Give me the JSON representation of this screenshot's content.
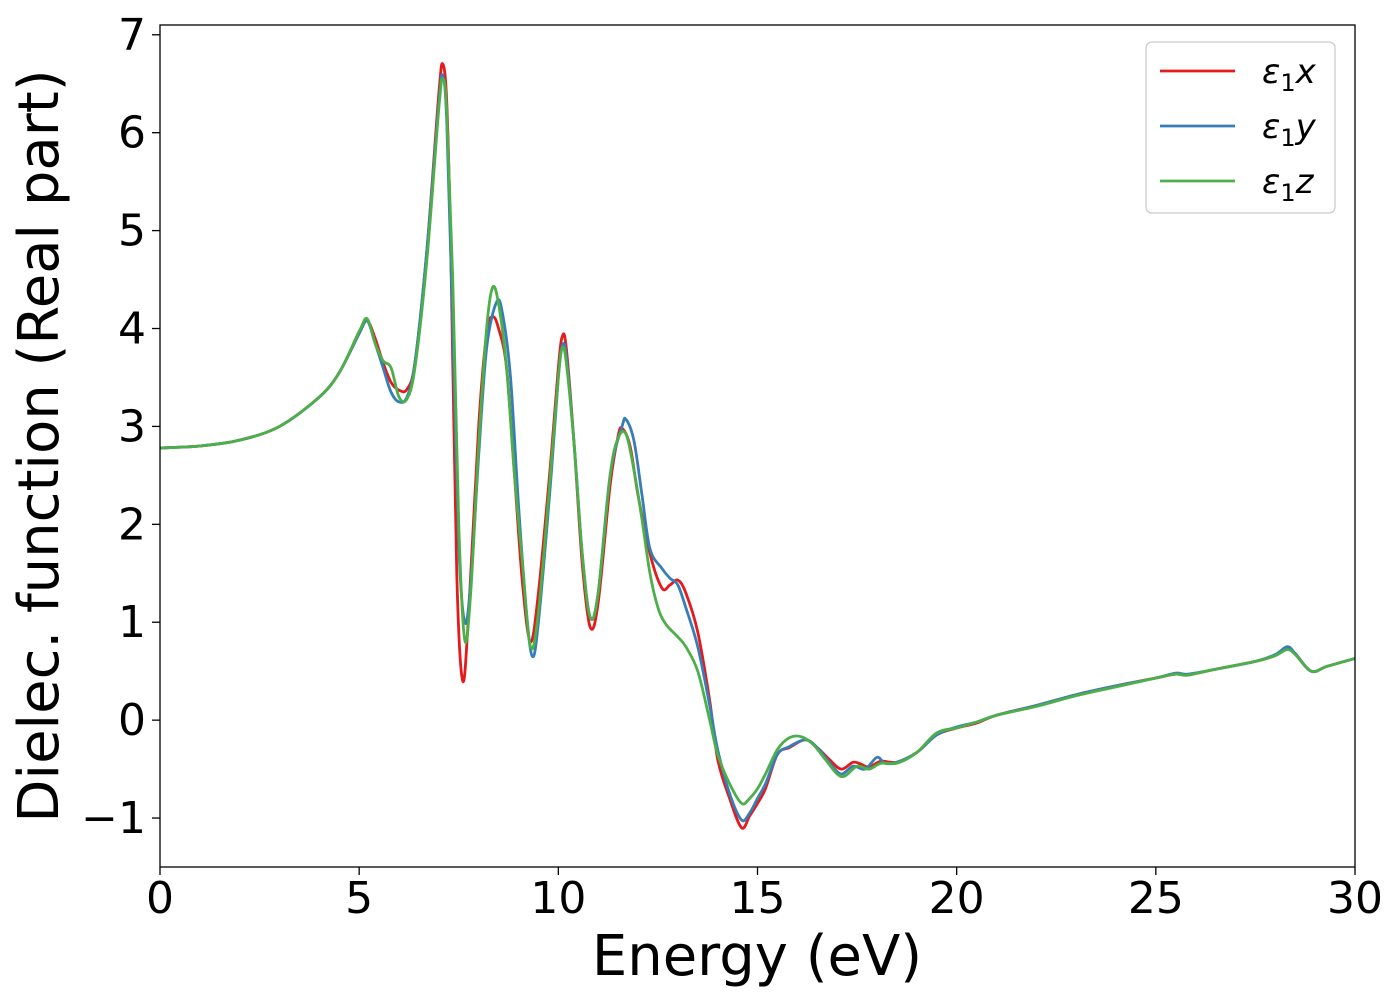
{
  "chart_data": {
    "type": "line",
    "title": "",
    "xlabel": "Energy (eV)",
    "ylabel": "Dielec. function (Real part)",
    "xlim": [
      0,
      30
    ],
    "ylim": [
      -1.5,
      7.1
    ],
    "xticks": [
      0,
      5,
      10,
      15,
      20,
      25,
      30
    ],
    "xtick_labels": [
      "0",
      "5",
      "10",
      "15",
      "20",
      "25",
      "30"
    ],
    "yticks": [
      -1,
      0,
      1,
      2,
      3,
      4,
      5,
      6,
      7
    ],
    "ytick_labels": [
      "−1",
      "0",
      "1",
      "2",
      "3",
      "4",
      "5",
      "6",
      "7"
    ],
    "grid": false,
    "legend_position": "top-right",
    "series": [
      {
        "name": "ε1x",
        "legend_main": "ε",
        "legend_sub": "1",
        "legend_var": "x",
        "color": "#e41a1c",
        "points": [
          [
            0,
            2.78
          ],
          [
            1,
            2.8
          ],
          [
            2,
            2.86
          ],
          [
            3,
            3.0
          ],
          [
            4,
            3.3
          ],
          [
            4.5,
            3.55
          ],
          [
            5,
            3.95
          ],
          [
            5.2,
            4.08
          ],
          [
            5.4,
            3.9
          ],
          [
            5.6,
            3.65
          ],
          [
            5.8,
            3.45
          ],
          [
            6.0,
            3.37
          ],
          [
            6.2,
            3.38
          ],
          [
            6.4,
            3.65
          ],
          [
            6.7,
            4.8
          ],
          [
            7.0,
            6.4
          ],
          [
            7.1,
            6.7
          ],
          [
            7.2,
            6.3
          ],
          [
            7.3,
            4.8
          ],
          [
            7.45,
            1.5
          ],
          [
            7.6,
            0.4
          ],
          [
            7.75,
            1.1
          ],
          [
            8.0,
            3.0
          ],
          [
            8.2,
            3.95
          ],
          [
            8.35,
            4.12
          ],
          [
            8.5,
            4.0
          ],
          [
            8.7,
            3.6
          ],
          [
            8.9,
            2.5
          ],
          [
            9.1,
            1.4
          ],
          [
            9.3,
            0.8
          ],
          [
            9.5,
            1.3
          ],
          [
            9.8,
            2.6
          ],
          [
            10.0,
            3.6
          ],
          [
            10.1,
            3.92
          ],
          [
            10.2,
            3.8
          ],
          [
            10.4,
            2.8
          ],
          [
            10.6,
            1.6
          ],
          [
            10.8,
            0.95
          ],
          [
            11.0,
            1.2
          ],
          [
            11.3,
            2.4
          ],
          [
            11.5,
            2.9
          ],
          [
            11.6,
            2.98
          ],
          [
            11.8,
            2.8
          ],
          [
            12.0,
            2.3
          ],
          [
            12.3,
            1.7
          ],
          [
            12.6,
            1.35
          ],
          [
            12.8,
            1.38
          ],
          [
            13.0,
            1.43
          ],
          [
            13.2,
            1.3
          ],
          [
            13.5,
            0.9
          ],
          [
            13.8,
            0.2
          ],
          [
            14.0,
            -0.4
          ],
          [
            14.3,
            -0.8
          ],
          [
            14.6,
            -1.1
          ],
          [
            14.8,
            -0.98
          ],
          [
            15.0,
            -0.85
          ],
          [
            15.2,
            -0.7
          ],
          [
            15.5,
            -0.35
          ],
          [
            15.8,
            -0.28
          ],
          [
            16.2,
            -0.2
          ],
          [
            16.5,
            -0.28
          ],
          [
            16.8,
            -0.4
          ],
          [
            17.1,
            -0.5
          ],
          [
            17.4,
            -0.43
          ],
          [
            17.6,
            -0.45
          ],
          [
            17.8,
            -0.48
          ],
          [
            18.1,
            -0.42
          ],
          [
            18.5,
            -0.43
          ],
          [
            19.0,
            -0.33
          ],
          [
            19.5,
            -0.15
          ],
          [
            20.0,
            -0.08
          ],
          [
            20.5,
            -0.03
          ],
          [
            21.0,
            0.05
          ],
          [
            22.0,
            0.15
          ],
          [
            23.0,
            0.26
          ],
          [
            24.0,
            0.35
          ],
          [
            25.0,
            0.43
          ],
          [
            25.5,
            0.47
          ],
          [
            25.8,
            0.46
          ],
          [
            26.5,
            0.52
          ],
          [
            27.5,
            0.6
          ],
          [
            28.0,
            0.66
          ],
          [
            28.3,
            0.73
          ],
          [
            28.5,
            0.68
          ],
          [
            28.9,
            0.5
          ],
          [
            29.3,
            0.55
          ],
          [
            30,
            0.63
          ]
        ]
      },
      {
        "name": "ε1y",
        "legend_main": "ε",
        "legend_sub": "1",
        "legend_var": "y",
        "color": "#377eb8",
        "points": [
          [
            0,
            2.78
          ],
          [
            1,
            2.8
          ],
          [
            2,
            2.86
          ],
          [
            3,
            3.0
          ],
          [
            4,
            3.3
          ],
          [
            4.5,
            3.55
          ],
          [
            5,
            3.95
          ],
          [
            5.2,
            4.08
          ],
          [
            5.4,
            3.85
          ],
          [
            5.6,
            3.6
          ],
          [
            5.8,
            3.35
          ],
          [
            6.0,
            3.25
          ],
          [
            6.2,
            3.3
          ],
          [
            6.4,
            3.65
          ],
          [
            6.7,
            4.8
          ],
          [
            7.0,
            6.3
          ],
          [
            7.1,
            6.58
          ],
          [
            7.2,
            6.1
          ],
          [
            7.35,
            4.0
          ],
          [
            7.5,
            1.8
          ],
          [
            7.65,
            1.0
          ],
          [
            7.8,
            1.4
          ],
          [
            8.0,
            2.7
          ],
          [
            8.2,
            3.8
          ],
          [
            8.45,
            4.27
          ],
          [
            8.6,
            4.15
          ],
          [
            8.8,
            3.5
          ],
          [
            9.0,
            2.2
          ],
          [
            9.2,
            1.1
          ],
          [
            9.35,
            0.65
          ],
          [
            9.5,
            1.0
          ],
          [
            9.8,
            2.4
          ],
          [
            10.0,
            3.5
          ],
          [
            10.1,
            3.82
          ],
          [
            10.2,
            3.72
          ],
          [
            10.4,
            2.8
          ],
          [
            10.6,
            1.7
          ],
          [
            10.8,
            1.05
          ],
          [
            11.0,
            1.3
          ],
          [
            11.3,
            2.5
          ],
          [
            11.6,
            3.0
          ],
          [
            11.7,
            3.07
          ],
          [
            11.9,
            2.85
          ],
          [
            12.1,
            2.3
          ],
          [
            12.3,
            1.75
          ],
          [
            12.6,
            1.55
          ],
          [
            12.8,
            1.45
          ],
          [
            13.0,
            1.38
          ],
          [
            13.2,
            1.15
          ],
          [
            13.5,
            0.75
          ],
          [
            13.8,
            0.15
          ],
          [
            14.0,
            -0.3
          ],
          [
            14.3,
            -0.75
          ],
          [
            14.6,
            -1.02
          ],
          [
            14.8,
            -0.95
          ],
          [
            15.0,
            -0.8
          ],
          [
            15.2,
            -0.65
          ],
          [
            15.5,
            -0.35
          ],
          [
            15.8,
            -0.27
          ],
          [
            16.2,
            -0.2
          ],
          [
            16.5,
            -0.28
          ],
          [
            16.8,
            -0.43
          ],
          [
            17.1,
            -0.55
          ],
          [
            17.4,
            -0.47
          ],
          [
            17.7,
            -0.5
          ],
          [
            18.0,
            -0.38
          ],
          [
            18.2,
            -0.44
          ],
          [
            18.5,
            -0.43
          ],
          [
            19.0,
            -0.33
          ],
          [
            19.5,
            -0.15
          ],
          [
            20.0,
            -0.07
          ],
          [
            20.5,
            -0.02
          ],
          [
            21.0,
            0.05
          ],
          [
            22.0,
            0.15
          ],
          [
            23.0,
            0.26
          ],
          [
            24.0,
            0.35
          ],
          [
            25.0,
            0.43
          ],
          [
            25.5,
            0.48
          ],
          [
            25.8,
            0.47
          ],
          [
            26.5,
            0.52
          ],
          [
            27.5,
            0.6
          ],
          [
            28.0,
            0.67
          ],
          [
            28.3,
            0.75
          ],
          [
            28.5,
            0.68
          ],
          [
            28.9,
            0.5
          ],
          [
            29.3,
            0.55
          ],
          [
            30,
            0.63
          ]
        ]
      },
      {
        "name": "ε1z",
        "legend_main": "ε",
        "legend_sub": "1",
        "legend_var": "z",
        "color": "#4daf4a",
        "points": [
          [
            0,
            2.78
          ],
          [
            1,
            2.8
          ],
          [
            2,
            2.86
          ],
          [
            3,
            3.0
          ],
          [
            4,
            3.3
          ],
          [
            4.5,
            3.55
          ],
          [
            5,
            3.97
          ],
          [
            5.2,
            4.1
          ],
          [
            5.4,
            3.85
          ],
          [
            5.6,
            3.67
          ],
          [
            5.8,
            3.6
          ],
          [
            6.0,
            3.3
          ],
          [
            6.2,
            3.28
          ],
          [
            6.4,
            3.6
          ],
          [
            6.7,
            4.7
          ],
          [
            7.0,
            6.25
          ],
          [
            7.1,
            6.55
          ],
          [
            7.2,
            6.2
          ],
          [
            7.35,
            4.5
          ],
          [
            7.5,
            2.0
          ],
          [
            7.65,
            0.82
          ],
          [
            7.8,
            1.3
          ],
          [
            8.0,
            2.8
          ],
          [
            8.2,
            4.0
          ],
          [
            8.35,
            4.42
          ],
          [
            8.5,
            4.25
          ],
          [
            8.7,
            3.6
          ],
          [
            8.9,
            2.5
          ],
          [
            9.1,
            1.6
          ],
          [
            9.3,
            0.75
          ],
          [
            9.5,
            1.1
          ],
          [
            9.8,
            2.5
          ],
          [
            10.0,
            3.5
          ],
          [
            10.1,
            3.8
          ],
          [
            10.2,
            3.65
          ],
          [
            10.4,
            2.8
          ],
          [
            10.6,
            1.7
          ],
          [
            10.8,
            1.05
          ],
          [
            11.0,
            1.3
          ],
          [
            11.3,
            2.5
          ],
          [
            11.5,
            2.88
          ],
          [
            11.7,
            2.92
          ],
          [
            11.9,
            2.55
          ],
          [
            12.1,
            2.05
          ],
          [
            12.3,
            1.5
          ],
          [
            12.5,
            1.15
          ],
          [
            12.7,
            0.98
          ],
          [
            13.0,
            0.85
          ],
          [
            13.2,
            0.75
          ],
          [
            13.5,
            0.5
          ],
          [
            13.8,
            0.0
          ],
          [
            14.0,
            -0.35
          ],
          [
            14.3,
            -0.65
          ],
          [
            14.6,
            -0.85
          ],
          [
            14.8,
            -0.8
          ],
          [
            15.0,
            -0.7
          ],
          [
            15.2,
            -0.55
          ],
          [
            15.5,
            -0.3
          ],
          [
            15.8,
            -0.18
          ],
          [
            16.1,
            -0.17
          ],
          [
            16.4,
            -0.25
          ],
          [
            16.7,
            -0.4
          ],
          [
            17.0,
            -0.55
          ],
          [
            17.2,
            -0.57
          ],
          [
            17.5,
            -0.47
          ],
          [
            17.8,
            -0.5
          ],
          [
            18.1,
            -0.44
          ],
          [
            18.5,
            -0.44
          ],
          [
            19.0,
            -0.33
          ],
          [
            19.5,
            -0.13
          ],
          [
            20.0,
            -0.08
          ],
          [
            20.5,
            -0.02
          ],
          [
            21.0,
            0.05
          ],
          [
            22.0,
            0.14
          ],
          [
            23.0,
            0.25
          ],
          [
            24.0,
            0.34
          ],
          [
            25.0,
            0.43
          ],
          [
            25.5,
            0.47
          ],
          [
            25.8,
            0.46
          ],
          [
            26.5,
            0.52
          ],
          [
            27.5,
            0.6
          ],
          [
            28.0,
            0.66
          ],
          [
            28.3,
            0.72
          ],
          [
            28.5,
            0.67
          ],
          [
            28.9,
            0.5
          ],
          [
            29.3,
            0.55
          ],
          [
            30,
            0.63
          ]
        ]
      }
    ]
  }
}
